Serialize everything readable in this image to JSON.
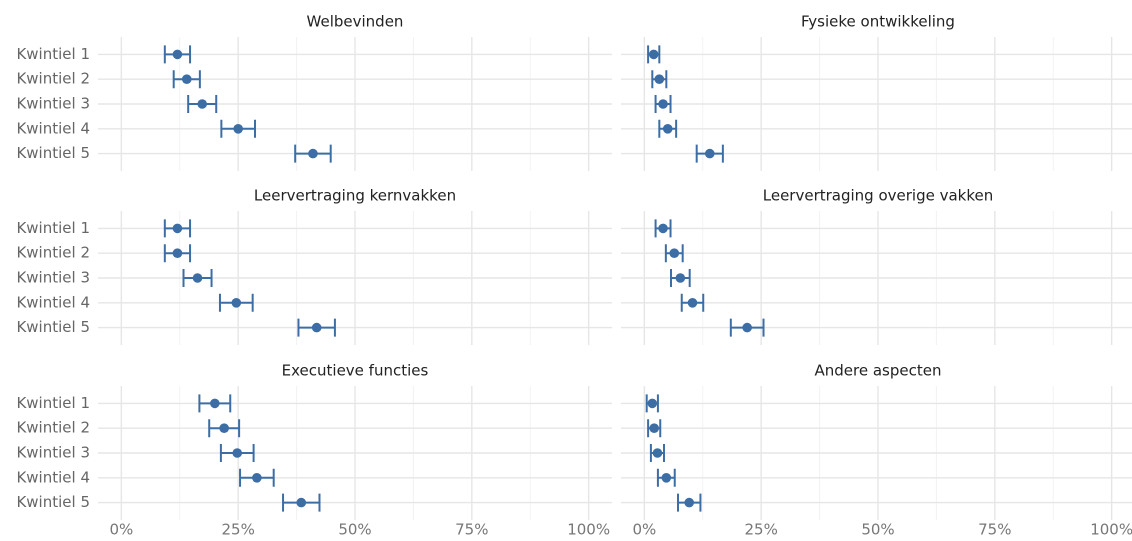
{
  "chart_data": [
    {
      "type": "dot",
      "title": "Welbevinden",
      "categories": [
        "Kwintiel 1",
        "Kwintiel 2",
        "Kwintiel 3",
        "Kwintiel 4",
        "Kwintiel 5"
      ],
      "values": [
        12,
        14,
        17.3,
        25,
        41
      ],
      "errors": [
        2.7,
        2.8,
        3,
        3.6,
        3.8
      ],
      "color": "#3c6ea5",
      "xlim": [
        -5,
        105
      ],
      "xticks": [
        {
          "value": 0,
          "label": "0%"
        },
        {
          "value": 25,
          "label": "25%"
        },
        {
          "value": 50,
          "label": "50%"
        },
        {
          "value": 75,
          "label": "75%"
        },
        {
          "value": 100,
          "label": "100%"
        }
      ]
    },
    {
      "type": "dot",
      "title": "Fysieke ontwikkeling",
      "values": [
        2,
        3.2,
        4,
        5,
        14
      ],
      "errors": [
        1.2,
        1.5,
        1.6,
        1.8,
        2.8
      ],
      "color": "#3c6ea5",
      "xlim": [
        -5,
        105
      ],
      "xticks": [
        {
          "value": 0,
          "label": "0%"
        },
        {
          "value": 25,
          "label": "25%"
        },
        {
          "value": 50,
          "label": "50%"
        },
        {
          "value": 75,
          "label": "75%"
        },
        {
          "value": 100,
          "label": "100%"
        }
      ]
    },
    {
      "type": "dot",
      "title": "Leervertraging kernvakken",
      "categories": [
        "Kwintiel 1",
        "Kwintiel 2",
        "Kwintiel 3",
        "Kwintiel 4",
        "Kwintiel 5"
      ],
      "values": [
        12,
        12,
        16.3,
        24.6,
        41.8
      ],
      "errors": [
        2.7,
        2.7,
        3,
        3.5,
        3.9
      ],
      "color": "#3c6ea5",
      "xlim": [
        -5,
        105
      ],
      "xticks": [
        {
          "value": 0,
          "label": "0%"
        },
        {
          "value": 25,
          "label": "25%"
        },
        {
          "value": 50,
          "label": "50%"
        },
        {
          "value": 75,
          "label": "75%"
        },
        {
          "value": 100,
          "label": "100%"
        }
      ]
    },
    {
      "type": "dot",
      "title": "Leervertraging overige vakken",
      "values": [
        4,
        6.4,
        7.7,
        10.3,
        22
      ],
      "errors": [
        1.6,
        1.8,
        2,
        2.3,
        3.5
      ],
      "color": "#3c6ea5",
      "xlim": [
        -5,
        105
      ],
      "xticks": [
        {
          "value": 0,
          "label": "0%"
        },
        {
          "value": 25,
          "label": "25%"
        },
        {
          "value": 50,
          "label": "50%"
        },
        {
          "value": 75,
          "label": "75%"
        },
        {
          "value": 100,
          "label": "100%"
        }
      ]
    },
    {
      "type": "dot",
      "title": "Executieve functies",
      "categories": [
        "Kwintiel 1",
        "Kwintiel 2",
        "Kwintiel 3",
        "Kwintiel 4",
        "Kwintiel 5"
      ],
      "values": [
        20,
        22,
        24.8,
        29,
        38.5
      ],
      "errors": [
        3.3,
        3.2,
        3.5,
        3.6,
        3.9
      ],
      "color": "#3c6ea5",
      "xlim": [
        -5,
        105
      ],
      "xticks": [
        {
          "value": 0,
          "label": "0%"
        },
        {
          "value": 25,
          "label": "25%"
        },
        {
          "value": 50,
          "label": "50%"
        },
        {
          "value": 75,
          "label": "75%"
        },
        {
          "value": 100,
          "label": "100%"
        }
      ]
    },
    {
      "type": "dot",
      "title": "Andere aspecten",
      "values": [
        1.7,
        2.1,
        2.8,
        4.7,
        9.6
      ],
      "errors": [
        1.2,
        1.3,
        1.4,
        1.8,
        2.4
      ],
      "color": "#3c6ea5",
      "xlim": [
        -5,
        105
      ],
      "xticks": [
        {
          "value": 0,
          "label": "0%"
        },
        {
          "value": 25,
          "label": "25%"
        },
        {
          "value": 50,
          "label": "50%"
        },
        {
          "value": 75,
          "label": "75%"
        },
        {
          "value": 100,
          "label": "100%"
        }
      ]
    }
  ]
}
